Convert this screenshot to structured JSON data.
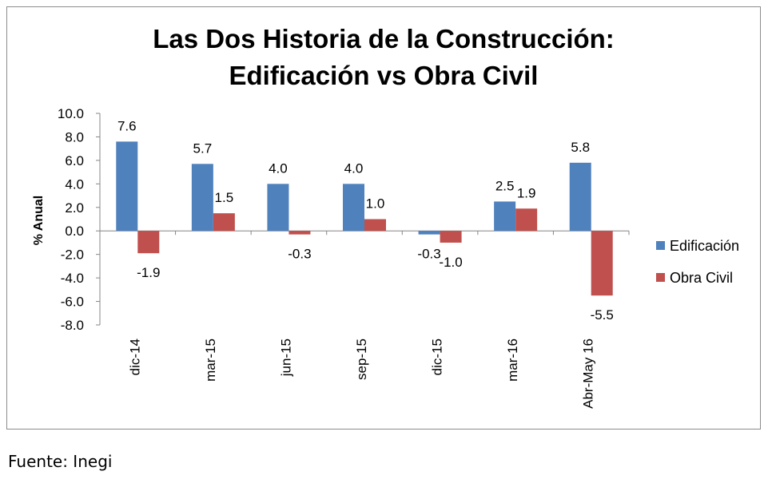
{
  "chart_data": {
    "type": "bar",
    "title_line1": "Las Dos Historia de la Construcción:",
    "title_line2": "Edificación vs Obra Civil",
    "ylabel": "% Anual",
    "xlabel": "",
    "ylim": [
      -8.0,
      10.0
    ],
    "yticks": [
      "10.0",
      "8.0",
      "6.0",
      "4.0",
      "2.0",
      "0.0",
      "-2.0",
      "-4.0",
      "-6.0",
      "-8.0"
    ],
    "categories": [
      "dic-14",
      "mar-15",
      "jun-15",
      "sep-15",
      "dic-15",
      "mar-16",
      "Abr-May 16"
    ],
    "series": [
      {
        "name": "Edificación",
        "color": "#4f81bd",
        "values": [
          7.6,
          5.7,
          4.0,
          4.0,
          -0.3,
          2.5,
          5.8
        ],
        "labels": [
          "7.6",
          "5.7",
          "4.0",
          "4.0",
          "-0.3",
          "2.5",
          "5.8"
        ]
      },
      {
        "name": "Obra Civil",
        "color": "#c0504d",
        "values": [
          -1.9,
          1.5,
          -0.3,
          1.0,
          -1.0,
          1.9,
          -5.5
        ],
        "labels": [
          "-1.9",
          "1.5",
          "-0.3",
          "1.0",
          "-1.0",
          "1.9",
          "-5.5"
        ]
      }
    ],
    "grid": false,
    "legend_position": "right"
  },
  "footer": {
    "source": "Fuente: Inegi"
  }
}
